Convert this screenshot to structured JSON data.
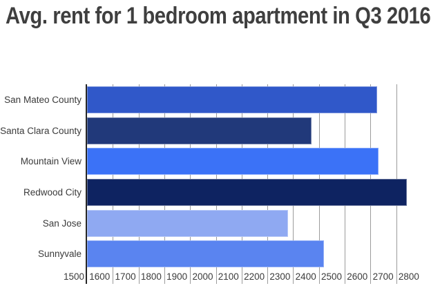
{
  "title": "Avg. rent for 1 bedroom apartment in Q3 2016",
  "chart_data": {
    "type": "bar",
    "orientation": "horizontal",
    "title": "Avg. rent for 1 bedroom apartment in Q3 2016",
    "categories": [
      "San Mateo County",
      "Santa Clara County",
      "Mountain View",
      "Redwood City",
      "San Jose",
      "Sunnyvale"
    ],
    "values": [
      2625,
      2370,
      2630,
      2740,
      2280,
      2420
    ],
    "bar_colors": [
      "#3058c9",
      "#21397a",
      "#3b72f7",
      "#0e2361",
      "#8fa9f2",
      "#5a84f0"
    ],
    "axis": {
      "min": 1500,
      "max": 2800,
      "tick_step": 100,
      "ticks": [
        1500,
        1600,
        1700,
        1800,
        1900,
        2000,
        2100,
        2200,
        2300,
        2400,
        2500,
        2600,
        2700,
        2800
      ],
      "plot_edge_value": 2835
    },
    "grid": true,
    "gridline_color": "#9b9b9b",
    "axis_line_color": "#262626",
    "title_color": "#3f3f3f",
    "label_color": "#3a3a3a",
    "background": "#ffffff"
  }
}
